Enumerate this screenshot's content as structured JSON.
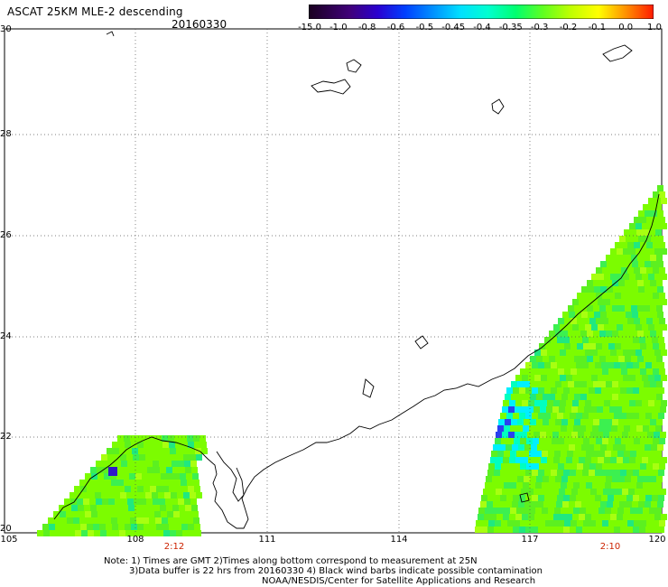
{
  "header": {
    "title": "ASCAT 25KM MLE-2 descending",
    "date": "20160330"
  },
  "colorbar": {
    "labels": [
      "-15.0",
      "-1.0",
      "-0.8",
      "-0.6",
      "-0.5",
      "-0.45",
      "-0.4",
      "-0.35",
      "-0.3",
      "-0.2",
      "-0.1",
      "0.0",
      "1.0"
    ],
    "colors": [
      "#200030",
      "#3a0070",
      "#3000c0",
      "#0030ff",
      "#0080ff",
      "#00c0ff",
      "#00ffff",
      "#00ff90",
      "#40ff40",
      "#a0ff00",
      "#ffff00",
      "#ff9000",
      "#ff2000"
    ]
  },
  "axes": {
    "lat_labels": [
      "30",
      "28",
      "26",
      "24",
      "22",
      "20"
    ],
    "lon_labels": [
      "105",
      "108",
      "111",
      "114",
      "117",
      "120"
    ],
    "lon_range": [
      105,
      120
    ],
    "lat_range": [
      20,
      30
    ]
  },
  "swaths": {
    "left_time": "2:12",
    "right_time": "2:10"
  },
  "notes": {
    "line1": "Note: 1) Times are GMT 2)Times along bottom correspond to measurement at 25N",
    "line2": "3)Data buffer is 22 hrs from 20160330 4) Black wind barbs indicate possible contamination",
    "line3": "NOAA/NESDIS/Center for Satellite Applications and Research"
  }
}
